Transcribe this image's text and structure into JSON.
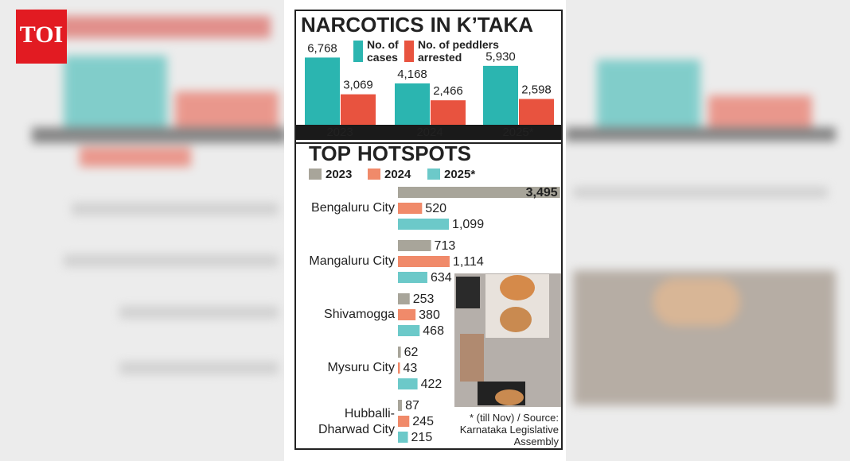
{
  "logo": "TOI",
  "chart_data": [
    {
      "type": "bar",
      "title": [
        "NARCOTICS",
        "IN K’TAKA"
      ],
      "categories": [
        "2023",
        "2024",
        "2025*"
      ],
      "series": [
        {
          "name": "No. of cases",
          "color": "#2bb5b0",
          "values": [
            6768,
            4168,
            5930
          ],
          "value_labels": [
            "6,768",
            "4,168",
            "5,930"
          ]
        },
        {
          "name": "No. of peddlers arrested",
          "color": "#e8533f",
          "values": [
            3069,
            2466,
            2598
          ],
          "value_labels": [
            "3,069",
            "2,466",
            "2,598"
          ]
        }
      ],
      "ylim": [
        0,
        8000
      ]
    },
    {
      "type": "hbar",
      "title": [
        "TOP",
        "HOTSPOTS"
      ],
      "categories": [
        "Bengaluru City",
        "Mangaluru City",
        "Shivamogga",
        "Mysuru City",
        "Hubballi-Dharwad City"
      ],
      "series": [
        {
          "name": "2023",
          "color": "#a8a59a",
          "values": [
            3495,
            713,
            253,
            62,
            87
          ],
          "value_labels": [
            "3,495",
            "713",
            "253",
            "62",
            "87"
          ]
        },
        {
          "name": "2024",
          "color": "#f08a6a",
          "values": [
            520,
            1114,
            380,
            43,
            245
          ],
          "value_labels": [
            "520",
            "1,114",
            "380",
            "43",
            "245"
          ]
        },
        {
          "name": "2025*",
          "color": "#6cc9c9",
          "values": [
            1099,
            634,
            468,
            422,
            215
          ],
          "value_labels": [
            "1,099",
            "634",
            "468",
            "422",
            "215"
          ]
        }
      ],
      "xlim": [
        0,
        3500
      ],
      "note": "* (till Nov) / Source: Karnataka Legislative Assembly"
    }
  ]
}
